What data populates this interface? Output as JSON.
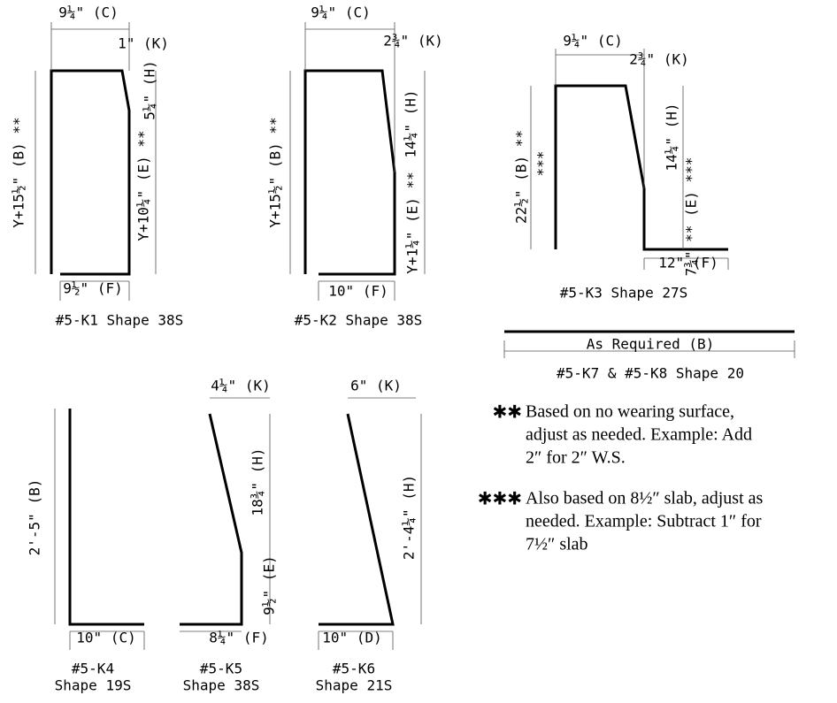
{
  "shapes": [
    {
      "labels": [
        "9¼\" (C)",
        "1\" (K)",
        "5¼\" (H)",
        "Y+15½\" (B) **",
        "Y+10¼\" (E) **",
        "9½\" (F)"
      ],
      "name": [
        "#5-K1 Shape 38S"
      ]
    },
    {
      "labels": [
        "9¼\" (C)",
        "2¾\" (K)",
        "14¼\" (H)",
        "Y+15½\" (B) **",
        "Y+1¼\" (E) **",
        "10\" (F)"
      ],
      "name": [
        "#5-K2 Shape 38S"
      ]
    },
    {
      "labels": [
        "9¼\" (C)",
        "2¾\" (K)",
        "22½\" (B) **",
        "***",
        "14¼\" (H)",
        "7¾\" ** (E) ***",
        "12\" (F)"
      ],
      "name": [
        "#5-K3 Shape 27S"
      ]
    },
    {
      "labels": [
        "As Required (B)"
      ],
      "name": [
        "#5-K7 & #5-K8 Shape 20"
      ]
    },
    {
      "labels": [
        "2'-5\" (B)",
        "10\" (C)"
      ],
      "name": [
        "#5-K4",
        "Shape 19S"
      ]
    },
    {
      "labels": [
        "4¼\" (K)",
        "18¾\" (H)",
        "9½\" (E)",
        "8¼\" (F)"
      ],
      "name": [
        "#5-K5",
        "Shape 38S"
      ]
    },
    {
      "labels": [
        "6\" (K)",
        "2'-4¼\" (H)",
        "10\" (D)"
      ],
      "name": [
        "#5-K6",
        "Shape 21S"
      ]
    }
  ],
  "notes": [
    {
      "marker": "✱✱",
      "lines": [
        "Based on no wearing surface,",
        "adjust as needed. Example: Add",
        "2″ for 2″ W.S."
      ]
    },
    {
      "marker": "✱✱✱",
      "lines": [
        "Also based on 8½″ slab, adjust as",
        "needed. Example: Subtract 1″ for",
        "7½″ slab"
      ]
    }
  ]
}
